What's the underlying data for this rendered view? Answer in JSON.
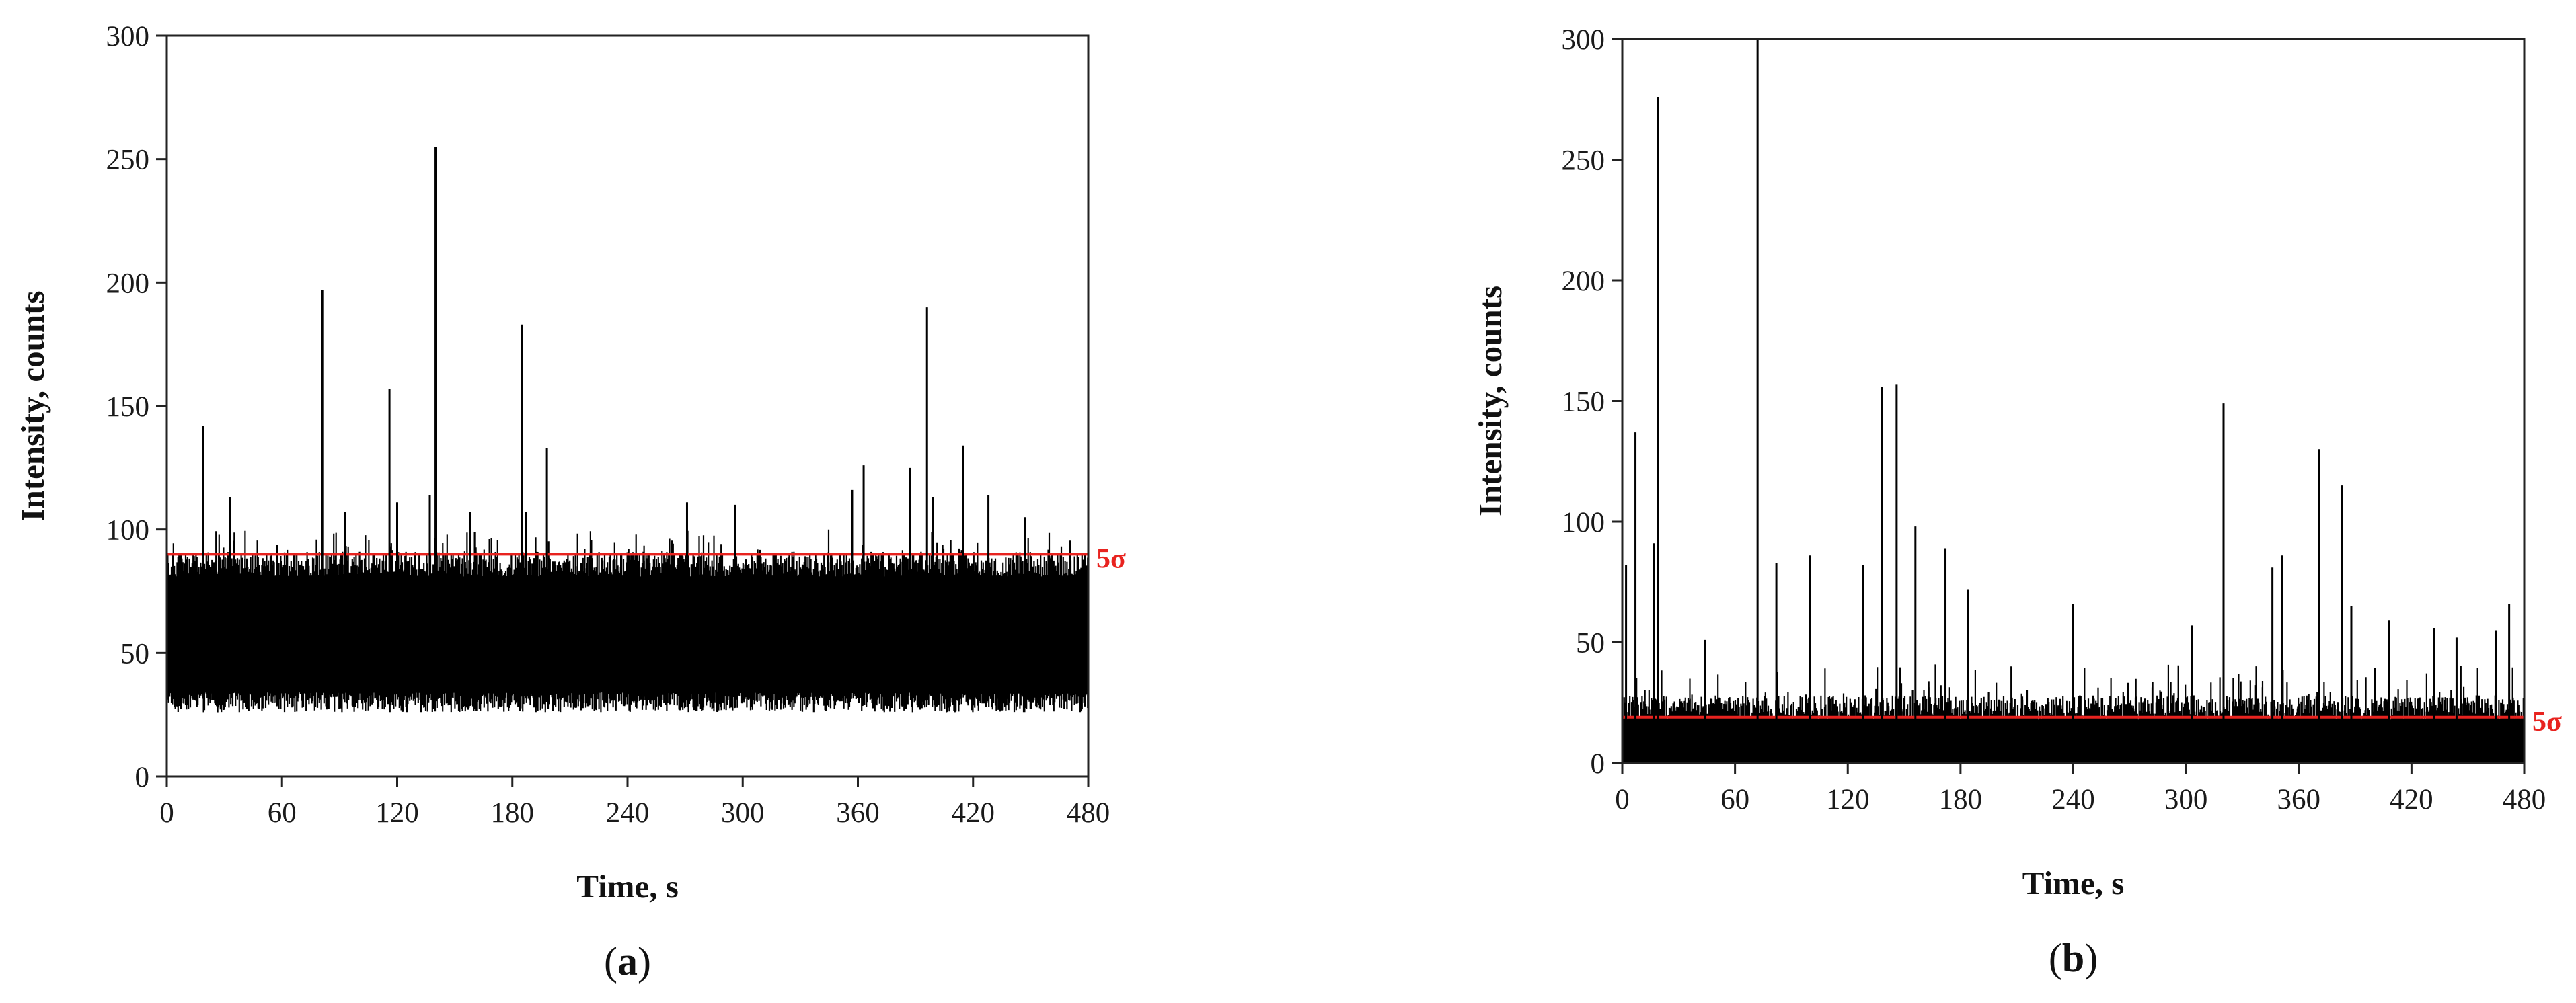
{
  "colors": {
    "signal": "#000000",
    "threshold": "#e8231f",
    "axis": "#222222"
  },
  "chart_data": [
    {
      "type": "line",
      "panel": "a",
      "panel_label_open": "(",
      "panel_label_letter": "a",
      "panel_label_close": ")",
      "xlabel": "Time, s",
      "ylabel": "Intensity, counts",
      "xlim": [
        0,
        480
      ],
      "ylim": [
        0,
        300
      ],
      "xticks": [
        0,
        60,
        120,
        180,
        240,
        300,
        360,
        420,
        480
      ],
      "yticks": [
        0,
        50,
        100,
        150,
        200,
        250,
        300
      ],
      "baseline": {
        "low": 30,
        "high": 85
      },
      "threshold": {
        "label": "5σ",
        "value": 90
      },
      "spikes": [
        {
          "x": 19,
          "y": 142
        },
        {
          "x": 33,
          "y": 113
        },
        {
          "x": 81,
          "y": 197
        },
        {
          "x": 93,
          "y": 107
        },
        {
          "x": 116,
          "y": 157
        },
        {
          "x": 120,
          "y": 111
        },
        {
          "x": 137,
          "y": 114
        },
        {
          "x": 140,
          "y": 255
        },
        {
          "x": 158,
          "y": 107
        },
        {
          "x": 185,
          "y": 183
        },
        {
          "x": 187,
          "y": 107
        },
        {
          "x": 198,
          "y": 133
        },
        {
          "x": 271,
          "y": 111
        },
        {
          "x": 296,
          "y": 110
        },
        {
          "x": 357,
          "y": 116
        },
        {
          "x": 363,
          "y": 126
        },
        {
          "x": 387,
          "y": 125
        },
        {
          "x": 396,
          "y": 190
        },
        {
          "x": 399,
          "y": 113
        },
        {
          "x": 415,
          "y": 134
        },
        {
          "x": 428,
          "y": 114
        },
        {
          "x": 447,
          "y": 105
        }
      ]
    },
    {
      "type": "line",
      "panel": "b",
      "panel_label_open": "(",
      "panel_label_letter": "b",
      "panel_label_close": ")",
      "xlabel": "Time, s",
      "ylabel": "Intensity, counts",
      "xlim": [
        0,
        480
      ],
      "ylim": [
        0,
        300
      ],
      "xticks": [
        0,
        60,
        120,
        180,
        240,
        300,
        360,
        420,
        480
      ],
      "yticks": [
        0,
        50,
        100,
        150,
        200,
        250,
        300
      ],
      "baseline": {
        "low": 0,
        "high": 22
      },
      "threshold": {
        "label": "5σ",
        "value": 19
      },
      "spikes": [
        {
          "x": 2,
          "y": 82
        },
        {
          "x": 7,
          "y": 137
        },
        {
          "x": 17,
          "y": 91
        },
        {
          "x": 19,
          "y": 276
        },
        {
          "x": 44,
          "y": 51
        },
        {
          "x": 72,
          "y": 300
        },
        {
          "x": 82,
          "y": 83
        },
        {
          "x": 100,
          "y": 86
        },
        {
          "x": 128,
          "y": 82
        },
        {
          "x": 138,
          "y": 156
        },
        {
          "x": 146,
          "y": 157
        },
        {
          "x": 156,
          "y": 98
        },
        {
          "x": 172,
          "y": 89
        },
        {
          "x": 184,
          "y": 72
        },
        {
          "x": 240,
          "y": 66
        },
        {
          "x": 303,
          "y": 57
        },
        {
          "x": 320,
          "y": 149
        },
        {
          "x": 346,
          "y": 81
        },
        {
          "x": 351,
          "y": 86
        },
        {
          "x": 371,
          "y": 130
        },
        {
          "x": 383,
          "y": 115
        },
        {
          "x": 388,
          "y": 65
        },
        {
          "x": 408,
          "y": 59
        },
        {
          "x": 432,
          "y": 56
        },
        {
          "x": 444,
          "y": 52
        },
        {
          "x": 465,
          "y": 55
        },
        {
          "x": 472,
          "y": 66
        }
      ]
    }
  ]
}
